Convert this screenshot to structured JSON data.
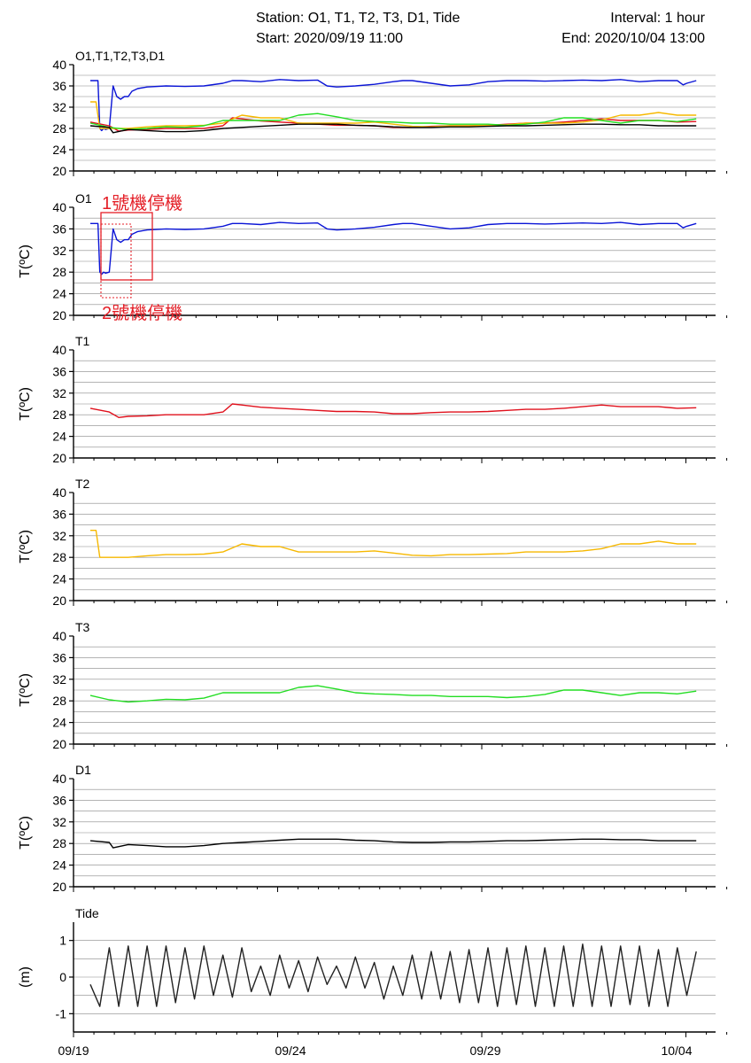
{
  "header": {
    "station": "Station: O1, T1, T2, T3, D1, Tide",
    "interval": "Interval: 1 hour",
    "start": "Start: 2020/09/19 11:00",
    "end": "End: 2020/10/04 13:00"
  },
  "colors": {
    "O1": "#0a14d6",
    "T1": "#e0101c",
    "T2": "#f6b800",
    "T3": "#22dd22",
    "D1": "#000000",
    "Tide": "#222222",
    "annotation": "#e41e26",
    "grid": "#888888"
  },
  "annotations": {
    "stop1": "1號機停機",
    "stop2": "2號機停機"
  },
  "chart_data": [
    {
      "type": "line",
      "panel_label": "O1,T1,T2,T3,D1",
      "ylabel": "",
      "ylim": [
        20,
        40
      ],
      "yticks": [
        20,
        24,
        28,
        32,
        36,
        40
      ],
      "grid": true,
      "series": [
        {
          "name": "O1",
          "color": "#0a14d6",
          "x": [
            0,
            0.2,
            0.4,
            0.5,
            0.6,
            0.7,
            0.8,
            1.0,
            1.2,
            1.4,
            1.6,
            1.8,
            2.0,
            2.2,
            2.5,
            3,
            4,
            5,
            6,
            7,
            7.5,
            8,
            9,
            10,
            11,
            12,
            12.5,
            13,
            14,
            15,
            16,
            16.5,
            17,
            18,
            19,
            20,
            21,
            22,
            23,
            24,
            25,
            26,
            27,
            28,
            29,
            30,
            31,
            31.3,
            31.5,
            32
          ],
          "y": [
            37,
            37,
            37,
            28,
            27.6,
            28,
            27.8,
            28,
            36,
            34,
            33.5,
            34,
            34,
            35,
            35.5,
            35.8,
            36,
            35.9,
            36,
            36.5,
            37,
            37,
            36.8,
            37.2,
            37,
            37.1,
            36,
            35.8,
            36,
            36.3,
            36.8,
            37,
            37,
            36.5,
            36,
            36.2,
            36.8,
            37,
            37,
            36.9,
            37,
            37.1,
            37,
            37.2,
            36.8,
            37,
            37,
            36.2,
            36.5,
            37
          ]
        },
        {
          "name": "T1",
          "color": "#e0101c",
          "x": [
            0,
            1,
            1.5,
            2,
            3,
            4,
            5,
            6,
            7,
            7.5,
            8,
            9,
            10,
            11,
            12,
            13,
            14,
            15,
            16,
            17,
            18,
            19,
            20,
            21,
            22,
            23,
            24,
            25,
            26,
            27,
            28,
            29,
            30,
            31,
            32
          ],
          "y": [
            29.2,
            28.5,
            27.5,
            27.7,
            27.8,
            28,
            28,
            28,
            28.5,
            30,
            29.8,
            29.4,
            29.2,
            29,
            28.8,
            28.6,
            28.6,
            28.5,
            28.2,
            28.2,
            28.4,
            28.5,
            28.5,
            28.6,
            28.8,
            29,
            29,
            29.2,
            29.5,
            29.8,
            29.5,
            29.5,
            29.5,
            29.2,
            29.3
          ]
        },
        {
          "name": "T2",
          "color": "#f6b800",
          "x": [
            0,
            0.3,
            0.5,
            1,
            2,
            3,
            4,
            5,
            6,
            7,
            8,
            9,
            10,
            11,
            12,
            13,
            14,
            15,
            16,
            17,
            18,
            19,
            20,
            21,
            22,
            23,
            24,
            25,
            26,
            27,
            28,
            29,
            30,
            31,
            32
          ],
          "y": [
            33,
            33,
            28,
            28,
            28,
            28.3,
            28.5,
            28.5,
            28.6,
            29,
            30.5,
            30,
            30,
            29,
            29,
            29,
            29,
            29.2,
            28.8,
            28.4,
            28.3,
            28.5,
            28.5,
            28.6,
            28.7,
            29,
            29,
            29,
            29.2,
            29.6,
            30.5,
            30.5,
            31,
            30.5,
            30.5
          ]
        },
        {
          "name": "T3",
          "color": "#22dd22",
          "x": [
            0,
            1,
            2,
            3,
            4,
            5,
            6,
            7,
            8,
            9,
            10,
            11,
            12,
            13,
            14,
            15,
            16,
            17,
            18,
            19,
            20,
            21,
            22,
            23,
            24,
            25,
            26,
            27,
            28,
            29,
            30,
            31,
            32
          ],
          "y": [
            29,
            28.2,
            27.8,
            28,
            28.3,
            28.2,
            28.5,
            29.5,
            29.5,
            29.5,
            29.5,
            30.5,
            30.8,
            30.2,
            29.5,
            29.3,
            29.2,
            29,
            29,
            28.8,
            28.8,
            28.8,
            28.6,
            28.8,
            29.2,
            30,
            30,
            29.5,
            29,
            29.5,
            29.5,
            29.3,
            29.8
          ]
        },
        {
          "name": "D1",
          "color": "#000000",
          "x": [
            0,
            1,
            1.2,
            2,
            3,
            4,
            5,
            6,
            7,
            8,
            9,
            10,
            11,
            12,
            13,
            14,
            15,
            16,
            17,
            18,
            19,
            20,
            21,
            22,
            23,
            24,
            25,
            26,
            27,
            28,
            29,
            30,
            31,
            32
          ],
          "y": [
            28.5,
            28.2,
            27.2,
            27.8,
            27.6,
            27.4,
            27.4,
            27.6,
            28,
            28.2,
            28.4,
            28.6,
            28.8,
            28.8,
            28.8,
            28.6,
            28.5,
            28.3,
            28.2,
            28.2,
            28.3,
            28.3,
            28.4,
            28.5,
            28.5,
            28.6,
            28.7,
            28.8,
            28.8,
            28.7,
            28.7,
            28.5,
            28.5,
            28.5
          ]
        }
      ]
    },
    {
      "type": "line",
      "panel_label": "O1",
      "ylabel": "T(ºC)",
      "ylim": [
        20,
        40
      ],
      "yticks": [
        20,
        24,
        28,
        32,
        36,
        40
      ],
      "grid": true,
      "series": [
        {
          "name": "O1",
          "color": "#0a14d6",
          "x": [
            0,
            0.2,
            0.4,
            0.5,
            0.6,
            0.7,
            0.8,
            1.0,
            1.2,
            1.4,
            1.6,
            1.8,
            2.0,
            2.2,
            2.5,
            3,
            4,
            5,
            6,
            7,
            7.5,
            8,
            9,
            10,
            11,
            12,
            12.5,
            13,
            14,
            15,
            16,
            16.5,
            17,
            18,
            19,
            20,
            21,
            22,
            23,
            24,
            25,
            26,
            27,
            28,
            29,
            30,
            31,
            31.3,
            31.5,
            32
          ],
          "y": [
            37,
            37,
            37,
            28,
            27.6,
            28,
            27.8,
            28,
            36,
            34,
            33.5,
            34,
            34,
            35,
            35.5,
            35.8,
            36,
            35.9,
            36,
            36.5,
            37,
            37,
            36.8,
            37.2,
            37,
            37.1,
            36,
            35.8,
            36,
            36.3,
            36.8,
            37,
            37,
            36.5,
            36,
            36.2,
            36.8,
            37,
            37,
            36.9,
            37,
            37.1,
            37,
            37.2,
            36.8,
            37,
            37,
            36.2,
            36.5,
            37
          ]
        }
      ]
    },
    {
      "type": "line",
      "panel_label": "T1",
      "ylabel": "T(ºC)",
      "ylim": [
        20,
        40
      ],
      "yticks": [
        20,
        24,
        28,
        32,
        36,
        40
      ],
      "grid": true,
      "series": [
        {
          "name": "T1",
          "color": "#e0101c",
          "x": [
            0,
            1,
            1.5,
            2,
            3,
            4,
            5,
            6,
            7,
            7.5,
            8,
            9,
            10,
            11,
            12,
            13,
            14,
            15,
            16,
            17,
            18,
            19,
            20,
            21,
            22,
            23,
            24,
            25,
            26,
            27,
            28,
            29,
            30,
            31,
            32
          ],
          "y": [
            29.2,
            28.5,
            27.5,
            27.7,
            27.8,
            28,
            28,
            28,
            28.5,
            30,
            29.8,
            29.4,
            29.2,
            29,
            28.8,
            28.6,
            28.6,
            28.5,
            28.2,
            28.2,
            28.4,
            28.5,
            28.5,
            28.6,
            28.8,
            29,
            29,
            29.2,
            29.5,
            29.8,
            29.5,
            29.5,
            29.5,
            29.2,
            29.3
          ]
        }
      ]
    },
    {
      "type": "line",
      "panel_label": "T2",
      "ylabel": "T(ºC)",
      "ylim": [
        20,
        40
      ],
      "yticks": [
        20,
        24,
        28,
        32,
        36,
        40
      ],
      "grid": true,
      "series": [
        {
          "name": "T2",
          "color": "#f6b800",
          "x": [
            0,
            0.3,
            0.5,
            1,
            2,
            3,
            4,
            5,
            6,
            7,
            8,
            9,
            10,
            11,
            12,
            13,
            14,
            15,
            16,
            17,
            18,
            19,
            20,
            21,
            22,
            23,
            24,
            25,
            26,
            27,
            28,
            29,
            30,
            31,
            32
          ],
          "y": [
            33,
            33,
            28,
            28,
            28,
            28.3,
            28.5,
            28.5,
            28.6,
            29,
            30.5,
            30,
            30,
            29,
            29,
            29,
            29,
            29.2,
            28.8,
            28.4,
            28.3,
            28.5,
            28.5,
            28.6,
            28.7,
            29,
            29,
            29,
            29.2,
            29.6,
            30.5,
            30.5,
            31,
            30.5,
            30.5
          ]
        }
      ]
    },
    {
      "type": "line",
      "panel_label": "T3",
      "ylabel": "T(ºC)",
      "ylim": [
        20,
        40
      ],
      "yticks": [
        20,
        24,
        28,
        32,
        36,
        40
      ],
      "grid": true,
      "series": [
        {
          "name": "T3",
          "color": "#22dd22",
          "x": [
            0,
            1,
            2,
            3,
            4,
            5,
            6,
            7,
            8,
            9,
            10,
            11,
            12,
            13,
            14,
            15,
            16,
            17,
            18,
            19,
            20,
            21,
            22,
            23,
            24,
            25,
            26,
            27,
            28,
            29,
            30,
            31,
            32
          ],
          "y": [
            29,
            28.2,
            27.8,
            28,
            28.3,
            28.2,
            28.5,
            29.5,
            29.5,
            29.5,
            29.5,
            30.5,
            30.8,
            30.2,
            29.5,
            29.3,
            29.2,
            29,
            29,
            28.8,
            28.8,
            28.8,
            28.6,
            28.8,
            29.2,
            30,
            30,
            29.5,
            29,
            29.5,
            29.5,
            29.3,
            29.8
          ]
        }
      ]
    },
    {
      "type": "line",
      "panel_label": "D1",
      "ylabel": "T(ºC)",
      "ylim": [
        20,
        40
      ],
      "yticks": [
        20,
        24,
        28,
        32,
        36,
        40
      ],
      "grid": true,
      "series": [
        {
          "name": "D1",
          "color": "#000000",
          "x": [
            0,
            1,
            1.2,
            2,
            3,
            4,
            5,
            6,
            7,
            8,
            9,
            10,
            11,
            12,
            13,
            14,
            15,
            16,
            17,
            18,
            19,
            20,
            21,
            22,
            23,
            24,
            25,
            26,
            27,
            28,
            29,
            30,
            31,
            32
          ],
          "y": [
            28.5,
            28.2,
            27.2,
            27.8,
            27.6,
            27.4,
            27.4,
            27.6,
            28,
            28.2,
            28.4,
            28.6,
            28.8,
            28.8,
            28.8,
            28.6,
            28.5,
            28.3,
            28.2,
            28.2,
            28.3,
            28.3,
            28.4,
            28.5,
            28.5,
            28.6,
            28.7,
            28.8,
            28.8,
            28.7,
            28.7,
            28.5,
            28.5,
            28.5
          ]
        }
      ]
    },
    {
      "type": "line",
      "panel_label": "Tide",
      "ylabel": "(m)",
      "ylim": [
        -1.5,
        1.5
      ],
      "yticks": [
        -1,
        0,
        1
      ],
      "grid": true,
      "series": [
        {
          "name": "Tide",
          "color": "#222222",
          "x": [
            0,
            0.5,
            1,
            1.5,
            2,
            2.5,
            3,
            3.5,
            4,
            4.5,
            5,
            5.5,
            6,
            6.5,
            7,
            7.5,
            8,
            8.5,
            9,
            9.5,
            10,
            10.5,
            11,
            11.5,
            12,
            12.5,
            13,
            13.5,
            14,
            14.5,
            15,
            15.5,
            16,
            16.5,
            17,
            17.5,
            18,
            18.5,
            19,
            19.5,
            20,
            20.5,
            21,
            21.5,
            22,
            22.5,
            23,
            23.5,
            24,
            24.5,
            25,
            25.5,
            26,
            26.5,
            27,
            27.5,
            28,
            28.5,
            29,
            29.5,
            30,
            30.5,
            31,
            31.5,
            32
          ],
          "y": [
            -0.2,
            -0.8,
            0.8,
            -0.8,
            0.85,
            -0.8,
            0.85,
            -0.8,
            0.85,
            -0.7,
            0.8,
            -0.6,
            0.85,
            -0.5,
            0.6,
            -0.55,
            0.8,
            -0.4,
            0.3,
            -0.5,
            0.6,
            -0.3,
            0.45,
            -0.4,
            0.55,
            -0.2,
            0.3,
            -0.3,
            0.55,
            -0.3,
            0.4,
            -0.6,
            0.3,
            -0.5,
            0.6,
            -0.6,
            0.7,
            -0.6,
            0.7,
            -0.7,
            0.75,
            -0.7,
            0.8,
            -0.8,
            0.8,
            -0.75,
            0.85,
            -0.8,
            0.8,
            -0.8,
            0.85,
            -0.8,
            0.9,
            -0.8,
            0.85,
            -0.8,
            0.85,
            -0.75,
            0.85,
            -0.8,
            0.75,
            -0.8,
            0.8,
            -0.5,
            0.7
          ]
        }
      ]
    }
  ],
  "x_axis": {
    "tick_labels": [
      "09/19",
      "09/24",
      "09/29",
      "10/04"
    ],
    "tick_days": [
      0,
      5,
      10,
      15
    ]
  }
}
